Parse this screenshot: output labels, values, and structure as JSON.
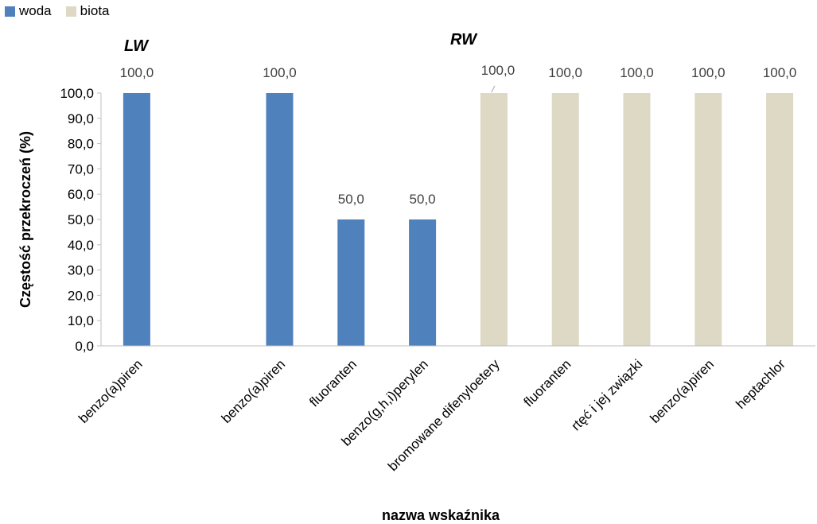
{
  "legend": {
    "items": [
      {
        "label": "woda",
        "color": "#4f81bd"
      },
      {
        "label": "biota",
        "color": "#ddd9c4"
      }
    ]
  },
  "groups": {
    "lw_label": "LW",
    "rw_label": "RW"
  },
  "chart_data": {
    "type": "bar",
    "xlabel": "nazwa wskaźnika",
    "ylabel": "Częstość przekroczeń (%)",
    "ylim": [
      0,
      100
    ],
    "y_ticks": [
      "0,0",
      "10,0",
      "20,0",
      "30,0",
      "40,0",
      "50,0",
      "60,0",
      "70,0",
      "80,0",
      "90,0",
      "100,0"
    ],
    "grid": false,
    "legend_position": "top-left",
    "categories": [
      "benzo(a)piren",
      "",
      "benzo(a)piren",
      "fluoranten",
      "benzo(g,h,i)perylen",
      "bromowane difenyloetery",
      "fluoranten",
      "rtęć i jej związki",
      "benzo(a)piren",
      "heptachlor"
    ],
    "series": [
      {
        "name": "woda",
        "color": "#4f81bd",
        "values": [
          100,
          null,
          100,
          50,
          50,
          null,
          null,
          null,
          null,
          null
        ]
      },
      {
        "name": "biota",
        "color": "#ddd9c4",
        "values": [
          null,
          null,
          null,
          null,
          null,
          100,
          100,
          100,
          100,
          100
        ]
      }
    ],
    "data_labels": [
      "100,0",
      "",
      "100,0",
      "50,0",
      "50,0",
      "100,0",
      "100,0",
      "100,0",
      "100,0",
      "100,0"
    ]
  }
}
